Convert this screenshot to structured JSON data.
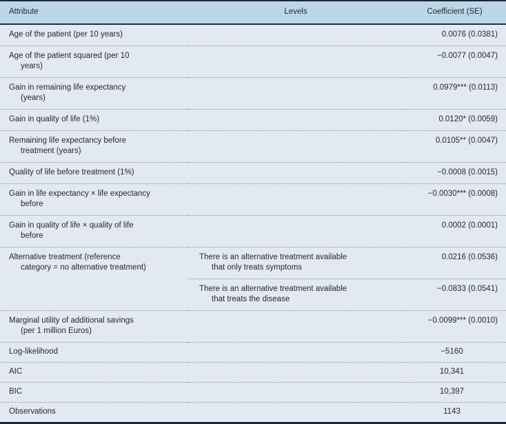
{
  "table": {
    "columns": {
      "attribute": "Attribute",
      "levels": "Levels",
      "coefficient": "Coefficient (SE)"
    },
    "rows": [
      {
        "attribute": "Age of the patient (per 10 years)",
        "level": "",
        "coef": "0.0076 (0.0381)"
      },
      {
        "attribute": "Age of the patient squared (per 10\nyears)",
        "level": "",
        "coef": "−0.0077 (0.0047)"
      },
      {
        "attribute": "Gain in remaining life expectancy\n(years)",
        "level": "",
        "coef": "0.0979*** (0.0113)"
      },
      {
        "attribute": "Gain in quality of life (1%)",
        "level": "",
        "coef": "0.0120* (0.0059)"
      },
      {
        "attribute": "Remaining life expectancy before\ntreatment (years)",
        "level": "",
        "coef": "0.0105** (0.0047)"
      },
      {
        "attribute": "Quality of life before treatment (1%)",
        "level": "",
        "coef": "−0.0008 (0.0015)"
      },
      {
        "attribute": "Gain in life expectancy × life expectancy\nbefore",
        "level": "",
        "coef": "−0.0030*** (0.0008)"
      },
      {
        "attribute": "Gain in quality of life × quality of life\nbefore",
        "level": "",
        "coef": "0.0002 (0.0001)"
      },
      {
        "attribute": "Alternative treatment (reference\ncategory = no alternative treatment)",
        "levels": [
          {
            "level": "There is an alternative treatment available\nthat only treats symptoms",
            "coef": "0.0216 (0.0536)"
          },
          {
            "level": "There is an alternative treatment available\nthat treats the disease",
            "coef": "−0.0833 (0.0541)"
          }
        ]
      },
      {
        "attribute": "Marginal utility of additional savings\n(per 1 million Euros)",
        "level": "",
        "coef": "−0.0099*** (0.0010)"
      }
    ],
    "stats": [
      {
        "label": "Log-likelihood",
        "value": "−5160"
      },
      {
        "label": "AIC",
        "value": "10,341"
      },
      {
        "label": "BIC",
        "value": "10,397"
      },
      {
        "label": "Observations",
        "value": "1143"
      }
    ],
    "colors": {
      "header_bg": "#bcd7e9",
      "row_bg": "#e3e9f3",
      "frame": "#1c2634",
      "header_rule": "#2b2e33",
      "dotted_rule": "#8b8f97",
      "text": "#26282b"
    }
  }
}
